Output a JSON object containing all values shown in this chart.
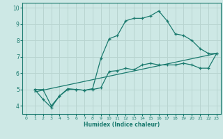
{
  "title": "",
  "xlabel": "Humidex (Indice chaleur)",
  "ylabel": "",
  "bg_color": "#cde8e5",
  "line_color": "#1a7a6e",
  "grid_color": "#b8d4d0",
  "xlim": [
    -0.5,
    23.5
  ],
  "ylim": [
    3.5,
    10.3
  ],
  "xticks": [
    0,
    1,
    2,
    3,
    4,
    5,
    6,
    7,
    8,
    9,
    10,
    11,
    12,
    13,
    14,
    15,
    16,
    17,
    18,
    19,
    20,
    21,
    22,
    23
  ],
  "yticks": [
    4,
    5,
    6,
    7,
    8,
    9,
    10
  ],
  "curve1_x": [
    1,
    2,
    3,
    4,
    5,
    6,
    7,
    8,
    9,
    10,
    11,
    12,
    13,
    14,
    15,
    16,
    17,
    18,
    19,
    20,
    21,
    22,
    23
  ],
  "curve1_y": [
    5.0,
    5.0,
    4.0,
    4.6,
    5.05,
    5.0,
    4.95,
    5.05,
    6.9,
    8.1,
    8.3,
    9.2,
    9.35,
    9.35,
    9.5,
    9.8,
    9.2,
    8.4,
    8.3,
    8.0,
    7.5,
    7.2,
    7.2
  ],
  "curve2_x": [
    1,
    2,
    3,
    4,
    5,
    6,
    7,
    8,
    9,
    10,
    11,
    12,
    13,
    14,
    15,
    16,
    17,
    18,
    19,
    20,
    21,
    22,
    23
  ],
  "curve2_y": [
    5.0,
    4.4,
    3.9,
    4.6,
    5.0,
    5.0,
    4.95,
    5.0,
    5.1,
    6.1,
    6.15,
    6.3,
    6.2,
    6.5,
    6.6,
    6.5,
    6.5,
    6.5,
    6.6,
    6.5,
    6.3,
    6.3,
    7.2
  ],
  "line_x": [
    1,
    23
  ],
  "line_y": [
    4.85,
    7.2
  ]
}
